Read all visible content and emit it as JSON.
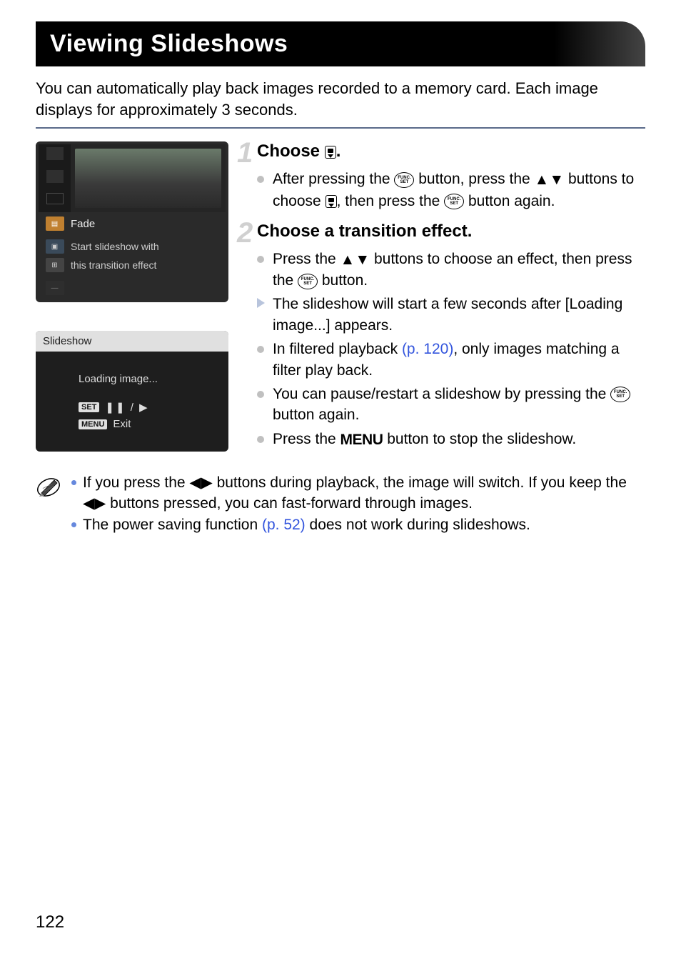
{
  "page": {
    "title": "Viewing Slideshows",
    "intro": "You can automatically play back images recorded to a memory card. Each image displays for approximately 3 seconds.",
    "number": "122"
  },
  "screenshot1": {
    "selected_label": "Fade",
    "desc_line1": "Start slideshow with",
    "desc_line2": "this transition effect"
  },
  "screenshot2": {
    "title": "Slideshow",
    "loading": "Loading image...",
    "set_label": "SET",
    "menu_label": "MENU",
    "exit_label": "Exit"
  },
  "steps": [
    {
      "num": "1",
      "title_pre": "Choose ",
      "title_post": ".",
      "bullets": [
        {
          "type": "dot",
          "parts": [
            "After pressing the ",
            "FUNC",
            " button, press the ",
            "UPDOWN",
            " buttons to choose ",
            "SLIDE",
            ", then press the ",
            "FUNC",
            " button again."
          ]
        }
      ]
    },
    {
      "num": "2",
      "title_pre": "Choose a transition effect.",
      "title_post": "",
      "bullets": [
        {
          "type": "dot",
          "parts": [
            "Press the ",
            "UPDOWN",
            " buttons to choose an effect, then press the ",
            "FUNC",
            " button."
          ]
        },
        {
          "type": "arrow",
          "parts": [
            "The slideshow will start a few seconds after [Loading image...] appears."
          ]
        },
        {
          "type": "dot",
          "parts": [
            "In filtered playback ",
            {
              "link": "(p. 120)"
            },
            ", only images matching a filter play back."
          ]
        },
        {
          "type": "dot",
          "parts": [
            "You can pause/restart a slideshow by pressing the ",
            "FUNC",
            " button again."
          ]
        },
        {
          "type": "dot",
          "parts": [
            "Press the ",
            "MENU",
            " button to stop the slideshow."
          ]
        }
      ]
    }
  ],
  "notes": [
    {
      "parts": [
        "If you press the ",
        "LEFTRIGHT",
        " buttons during playback, the image will switch. If you keep the ",
        "LEFTRIGHT",
        " buttons pressed, you can fast-forward through images."
      ]
    },
    {
      "parts": [
        "The power saving function ",
        {
          "link": "(p. 52)"
        },
        " does not work during slideshows."
      ]
    }
  ],
  "colors": {
    "title_bg": "#000000",
    "title_fg": "#ffffff",
    "divider": "#5a6a8a",
    "step_num": "#d0d0d0",
    "bullet_gray": "#c0c0c0",
    "bullet_arrow": "#b8c4dc",
    "link": "#3355dd",
    "note_bullet": "#6688dd"
  }
}
